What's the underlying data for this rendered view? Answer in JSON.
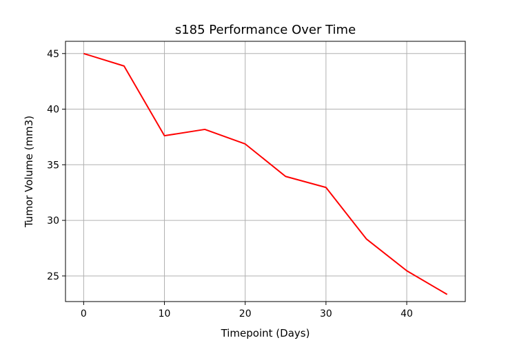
{
  "chart_data": {
    "type": "line",
    "title": "s185 Performance Over Time",
    "xlabel": "Timepoint (Days)",
    "ylabel": "Tumor Volume (mm3)",
    "xlim": [
      -2.25,
      47.25
    ],
    "ylim": [
      22.7,
      46.1
    ],
    "xticks": [
      0,
      10,
      20,
      30,
      40
    ],
    "yticks": [
      25,
      30,
      35,
      40,
      45
    ],
    "grid": true,
    "series": [
      {
        "color": "#ff0000",
        "x": [
          0,
          5,
          10,
          15,
          20,
          25,
          30,
          35,
          40,
          45
        ],
        "y": [
          45.0,
          43.88,
          37.61,
          38.18,
          36.87,
          33.95,
          32.96,
          28.33,
          25.47,
          23.34
        ]
      }
    ]
  }
}
